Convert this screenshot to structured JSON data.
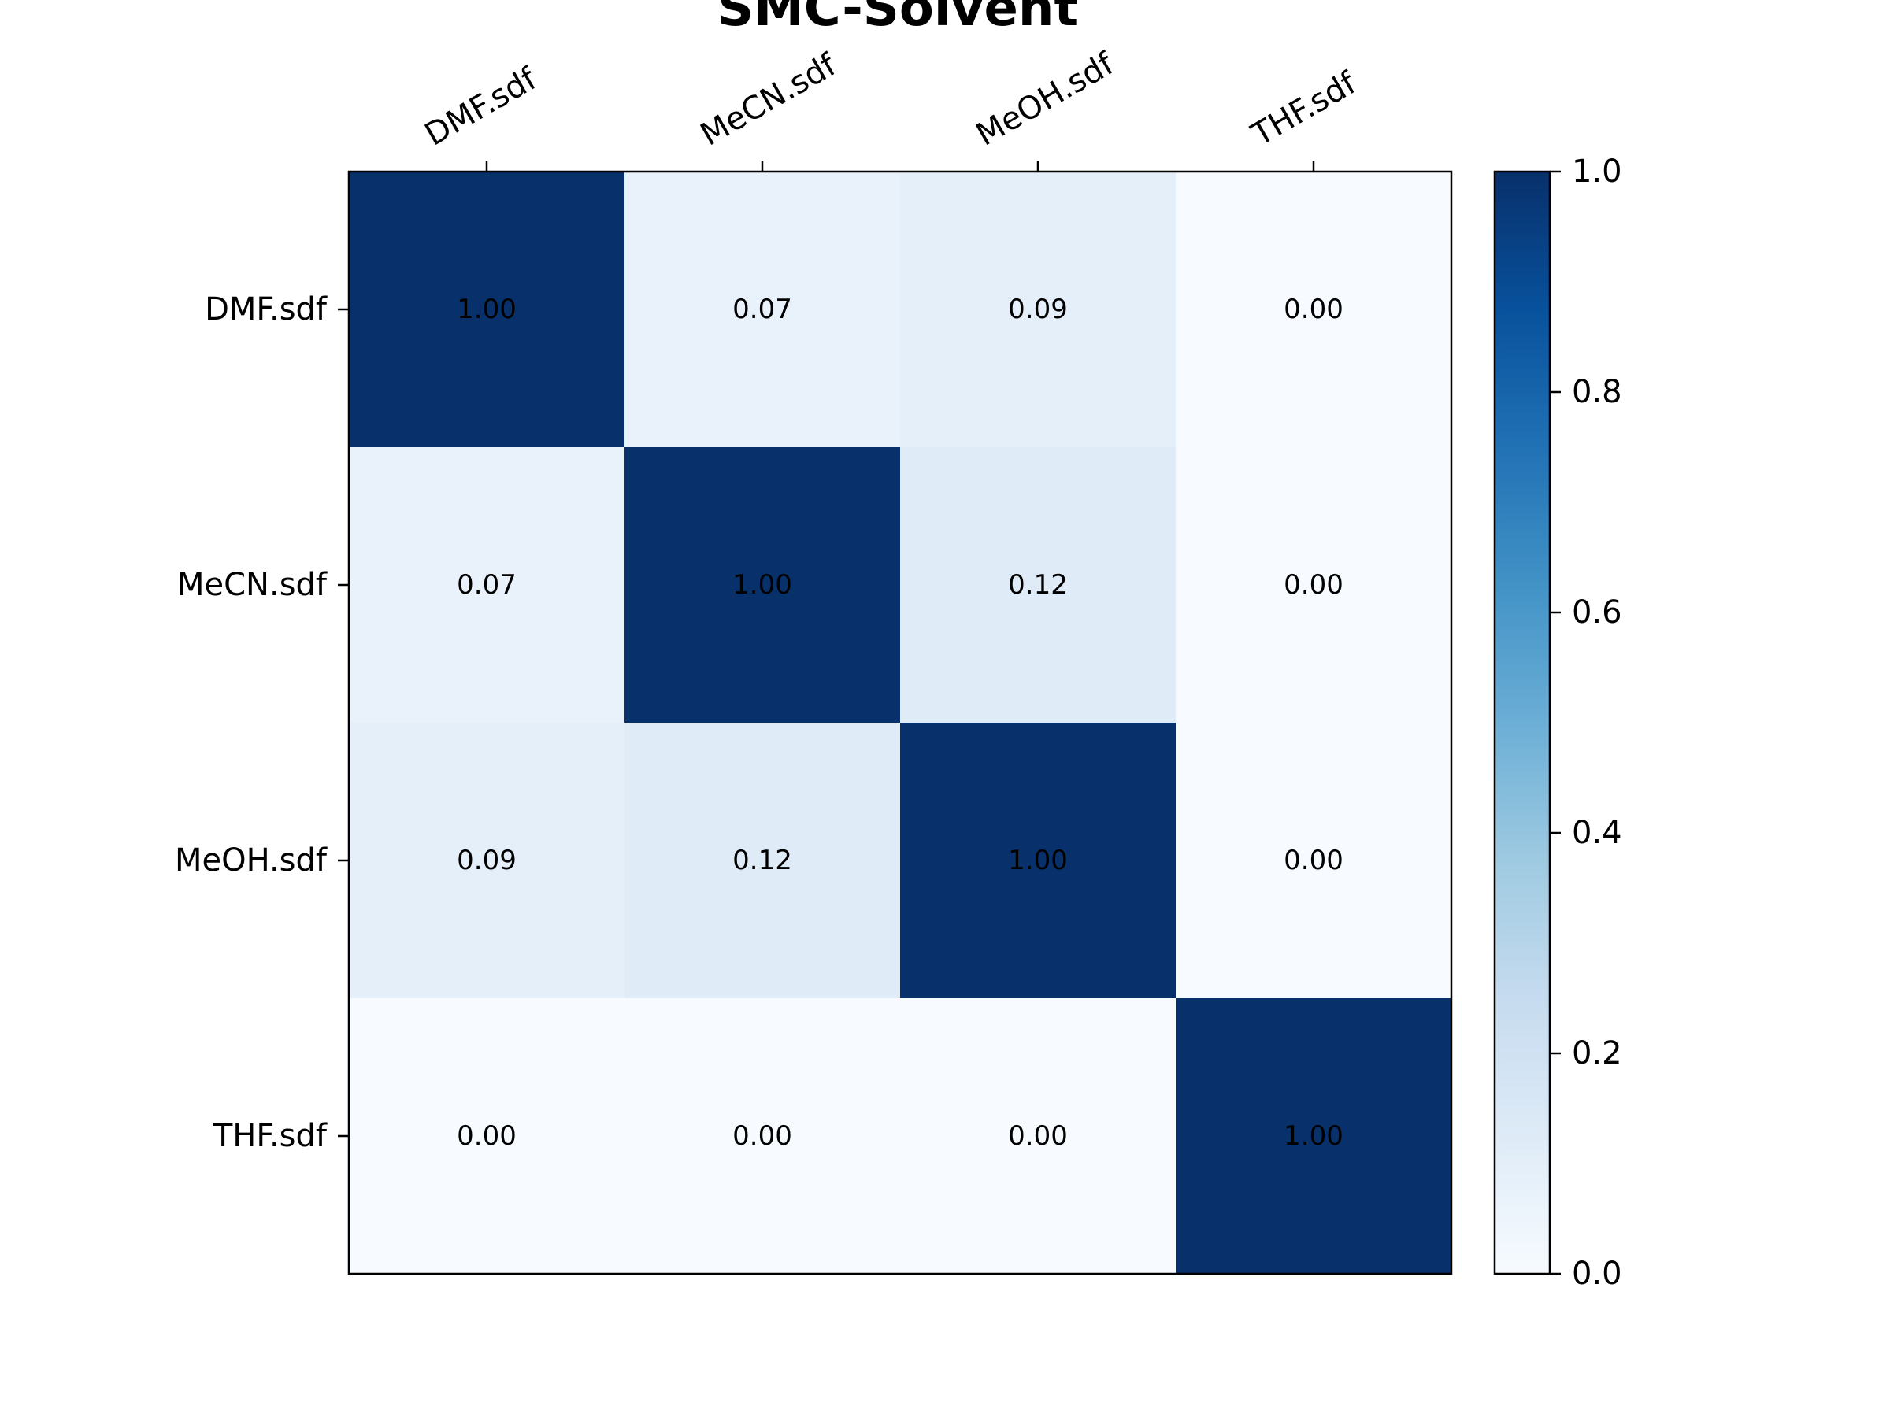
{
  "chart_data": {
    "type": "heatmap",
    "title": "SMC-Solvent",
    "x_labels": [
      "DMF.sdf",
      "MeCN.sdf",
      "MeOH.sdf",
      "THF.sdf"
    ],
    "y_labels": [
      "DMF.sdf",
      "MeCN.sdf",
      "MeOH.sdf",
      "THF.sdf"
    ],
    "values": [
      [
        1.0,
        0.07,
        0.09,
        0.0
      ],
      [
        0.07,
        1.0,
        0.12,
        0.0
      ],
      [
        0.09,
        0.12,
        1.0,
        0.0
      ],
      [
        0.0,
        0.0,
        0.0,
        1.0
      ]
    ],
    "value_labels": [
      [
        "1.00",
        "0.07",
        "0.09",
        "0.00"
      ],
      [
        "0.07",
        "1.00",
        "0.12",
        "0.00"
      ],
      [
        "0.09",
        "0.12",
        "1.00",
        "0.00"
      ],
      [
        "0.00",
        "0.00",
        "0.00",
        "1.00"
      ]
    ],
    "colormap": "Blues",
    "color_range": [
      0.0,
      1.0
    ],
    "colorbar_ticks": [
      0.0,
      0.2,
      0.4,
      0.6,
      0.8,
      1.0
    ],
    "colorbar_tick_labels": [
      "0.0",
      "0.2",
      "0.4",
      "0.6",
      "0.8",
      "1.0"
    ],
    "xlabel": "",
    "ylabel": "",
    "x_tick_position": "top",
    "colorbar_position": "right",
    "grid": false
  }
}
